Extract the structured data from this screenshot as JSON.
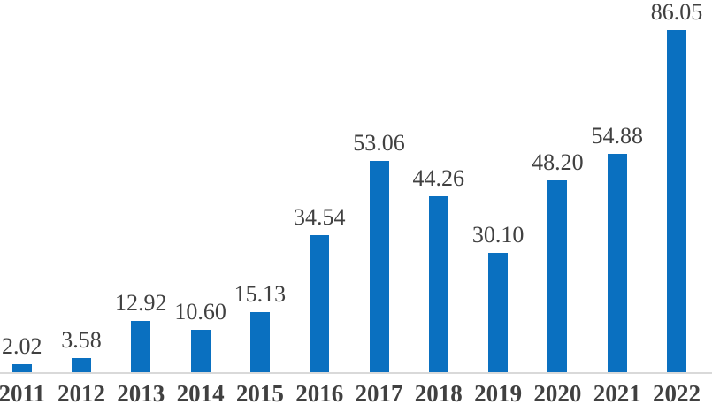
{
  "chart_data": {
    "type": "bar",
    "title": "",
    "xlabel": "",
    "ylabel": "",
    "categories": [
      "2011",
      "2012",
      "2013",
      "2014",
      "2015",
      "2016",
      "2017",
      "2018",
      "2019",
      "2020",
      "2021",
      "2022"
    ],
    "values": [
      2.02,
      3.58,
      12.92,
      10.6,
      15.13,
      34.54,
      53.06,
      44.26,
      30.1,
      48.2,
      54.88,
      86.05
    ],
    "value_labels": [
      "2.02",
      "3.58",
      "12.92",
      "10.60",
      "15.13",
      "34.54",
      "53.06",
      "44.26",
      "30.10",
      "48.20",
      "54.88",
      "86.05"
    ],
    "ylim": [
      0,
      94
    ],
    "grid": false,
    "legend": "none",
    "data_labels_position": "outside-end",
    "colors": {
      "bar": "#0a70c0",
      "axis_line": "#d9d9d9",
      "label_text": "#404040",
      "background": "#ffffff"
    }
  }
}
